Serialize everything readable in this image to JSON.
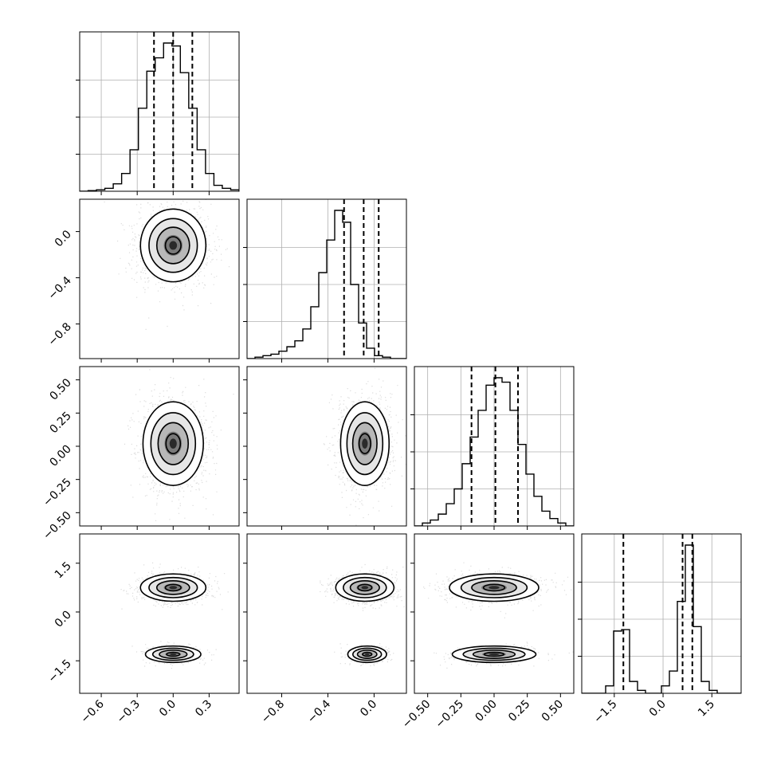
{
  "chart_data": {
    "type": "corner",
    "grid": true,
    "colors": {
      "points": "#9a9a9a",
      "lines": "#000000",
      "grid": "#b0b0b0",
      "background": "#ffffff"
    },
    "parameters": [
      {
        "range": [
          -0.78,
          0.55
        ],
        "ticks": [
          -0.6,
          -0.3,
          0.0,
          0.3
        ],
        "tick_labels": [
          "−0.6",
          "−0.3",
          "0.0",
          "0.3"
        ],
        "quantiles": [
          -0.16,
          0.0,
          0.16
        ],
        "hist": {
          "start": -0.78,
          "width": 0.07,
          "values": [
            0.0,
            0.004,
            0.01,
            0.02,
            0.05,
            0.12,
            0.28,
            0.56,
            0.81,
            0.9,
            1.0,
            0.98,
            0.8,
            0.56,
            0.28,
            0.12,
            0.04,
            0.02,
            0.01
          ]
        }
      },
      {
        "range": [
          -1.1,
          0.28
        ],
        "ticks": [
          -0.8,
          -0.4,
          0.0
        ],
        "tick_labels": [
          "−0.8",
          "−0.4",
          "0.0"
        ],
        "quantiles": [
          -0.26,
          -0.09,
          0.04
        ],
        "hist": {
          "start": -1.1,
          "width": 0.069,
          "values": [
            0.0,
            0.01,
            0.02,
            0.03,
            0.05,
            0.08,
            0.12,
            0.2,
            0.35,
            0.58,
            0.8,
            1.0,
            0.92,
            0.5,
            0.24,
            0.07,
            0.02,
            0.01,
            0.0,
            0.0
          ]
        }
      },
      {
        "range": [
          -0.6,
          0.6
        ],
        "ticks": [
          -0.5,
          -0.25,
          0.0,
          0.25,
          0.5
        ],
        "tick_labels": [
          "−0.50",
          "−0.25",
          "0.00",
          "0.25",
          "0.50"
        ],
        "quantiles": [
          -0.17,
          0.01,
          0.18
        ],
        "hist": {
          "start": -0.6,
          "width": 0.06,
          "values": [
            0.0,
            0.02,
            0.04,
            0.08,
            0.15,
            0.25,
            0.42,
            0.6,
            0.78,
            0.95,
            1.0,
            0.97,
            0.78,
            0.55,
            0.35,
            0.2,
            0.1,
            0.05,
            0.02,
            0.0
          ]
        }
      },
      {
        "range": [
          -2.5,
          2.4
        ],
        "ticks": [
          -1.5,
          0.0,
          1.5
        ],
        "tick_labels": [
          "−1.5",
          "0.0",
          "1.5"
        ],
        "quantiles": [
          -1.22,
          0.6,
          0.9
        ],
        "hist": {
          "start": -2.5,
          "width": 0.245,
          "values": [
            0.0,
            0.0,
            0.0,
            0.05,
            0.42,
            0.43,
            0.08,
            0.02,
            0.0,
            0.0,
            0.05,
            0.15,
            0.62,
            1.0,
            0.45,
            0.08,
            0.02,
            0.0,
            0.0,
            0.0
          ]
        }
      }
    ],
    "pair_panels": [
      {
        "row": 1,
        "col": 0,
        "blobs": [
          {
            "cx": 0.0,
            "cy": -0.12,
            "sx": 0.13,
            "sy": 0.15,
            "w": 1.0
          }
        ]
      },
      {
        "row": 2,
        "col": 0,
        "blobs": [
          {
            "cx": 0.0,
            "cy": 0.02,
            "sx": 0.12,
            "sy": 0.15,
            "w": 1.0
          }
        ]
      },
      {
        "row": 2,
        "col": 1,
        "blobs": [
          {
            "cx": -0.08,
            "cy": 0.02,
            "sx": 0.1,
            "sy": 0.15,
            "w": 1.0
          }
        ]
      },
      {
        "row": 3,
        "col": 0,
        "blobs": [
          {
            "cx": 0.0,
            "cy": 0.75,
            "sx": 0.13,
            "sy": 0.2,
            "w": 0.74
          },
          {
            "cx": 0.0,
            "cy": -1.3,
            "sx": 0.11,
            "sy": 0.12,
            "w": 0.26
          }
        ]
      },
      {
        "row": 3,
        "col": 1,
        "blobs": [
          {
            "cx": -0.08,
            "cy": 0.75,
            "sx": 0.12,
            "sy": 0.2,
            "w": 0.74
          },
          {
            "cx": -0.06,
            "cy": -1.3,
            "sx": 0.08,
            "sy": 0.12,
            "w": 0.26
          }
        ]
      },
      {
        "row": 3,
        "col": 2,
        "blobs": [
          {
            "cx": 0.0,
            "cy": 0.75,
            "sx": 0.16,
            "sy": 0.2,
            "w": 0.74
          },
          {
            "cx": 0.0,
            "cy": -1.3,
            "sx": 0.15,
            "sy": 0.12,
            "w": 0.26
          }
        ]
      }
    ]
  }
}
